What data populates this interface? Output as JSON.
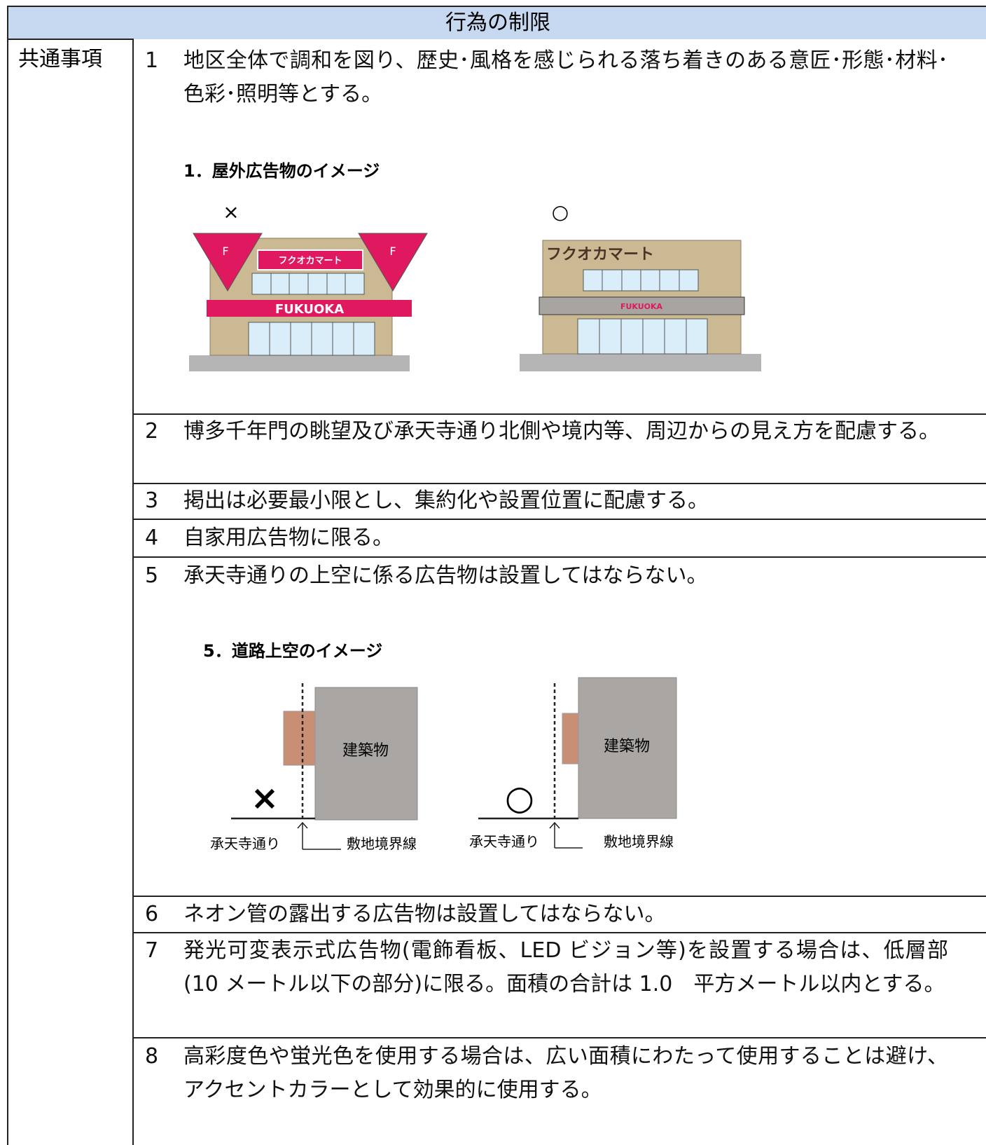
{
  "table": {
    "header": "行為の制限",
    "category": "共通事項",
    "items": [
      {
        "number": "1",
        "text": "地区全体で調和を図り、歴史･風格を感じられる落ち着きのある意匠･形態･材料･色彩･照明等とする。"
      },
      {
        "number": "2",
        "text": "博多千年門の眺望及び承天寺通り北側や境内等、周辺からの見え方を配慮する。"
      },
      {
        "number": "3",
        "text": "掲出は必要最小限とし、集約化や設置位置に配慮する。"
      },
      {
        "number": "4",
        "text": "自家用広告物に限る。"
      },
      {
        "number": "5",
        "text": "承天寺通りの上空に係る広告物は設置してはならない。"
      },
      {
        "number": "6",
        "text": "ネオン管の露出する広告物は設置してはならない。"
      },
      {
        "number": "7",
        "text": "発光可変表示式広告物(電飾看板、LED ビジョン等)を設置する場合は、低層部(10 メートル以下の部分)に限る。面積の合計は 1.0　平方メートル以内とする。"
      },
      {
        "number": "8",
        "text": "高彩度色や蛍光色を使用する場合は、広い面積にわたって使用することは避け、アクセントカラーとして効果的に使用する。"
      }
    ]
  },
  "figures": [
    {
      "caption": "1．屋外広告物のイメージ",
      "bad_mark": "×",
      "good_mark": "○",
      "shop_name": "フクオカマート",
      "band_text": "FUKUOKA",
      "flag_text": "F"
    },
    {
      "caption": "5．道路上空のイメージ",
      "bad_mark": "×",
      "good_mark": "○",
      "building": "建築物",
      "street": "承天寺通り",
      "boundary": "敷地境界線"
    }
  ]
}
